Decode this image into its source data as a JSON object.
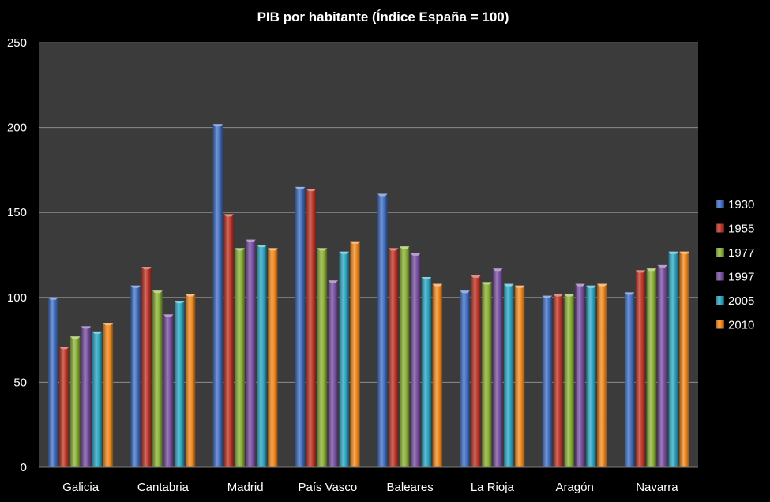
{
  "chart_data": {
    "type": "bar",
    "title": "PIB por habitante (Índice España = 100)",
    "xlabel": "",
    "ylabel": "",
    "ylim": [
      0,
      250
    ],
    "yticks": [
      0,
      50,
      100,
      150,
      200,
      250
    ],
    "grid": true,
    "legend_position": "right",
    "categories": [
      "Galicia",
      "Cantabria",
      "Madrid",
      "País Vasco",
      "Baleares",
      "La Rioja",
      "Aragón",
      "Navarra"
    ],
    "series": [
      {
        "name": "1930",
        "color": "#4472c4",
        "values": [
          100,
          107,
          202,
          165,
          161,
          104,
          101,
          103
        ]
      },
      {
        "name": "1955",
        "color": "#c0392b",
        "values": [
          71,
          118,
          149,
          164,
          129,
          113,
          102,
          116
        ]
      },
      {
        "name": "1977",
        "color": "#8db33a",
        "values": [
          77,
          104,
          129,
          129,
          130,
          109,
          102,
          117
        ]
      },
      {
        "name": "1997",
        "color": "#7b52a3",
        "values": [
          83,
          90,
          134,
          110,
          126,
          117,
          108,
          119
        ]
      },
      {
        "name": "2005",
        "color": "#2fa8c4",
        "values": [
          80,
          98,
          131,
          127,
          112,
          108,
          107,
          127
        ]
      },
      {
        "name": "2010",
        "color": "#f28b20",
        "values": [
          85,
          102,
          129,
          133,
          108,
          107,
          108,
          127
        ]
      }
    ]
  }
}
